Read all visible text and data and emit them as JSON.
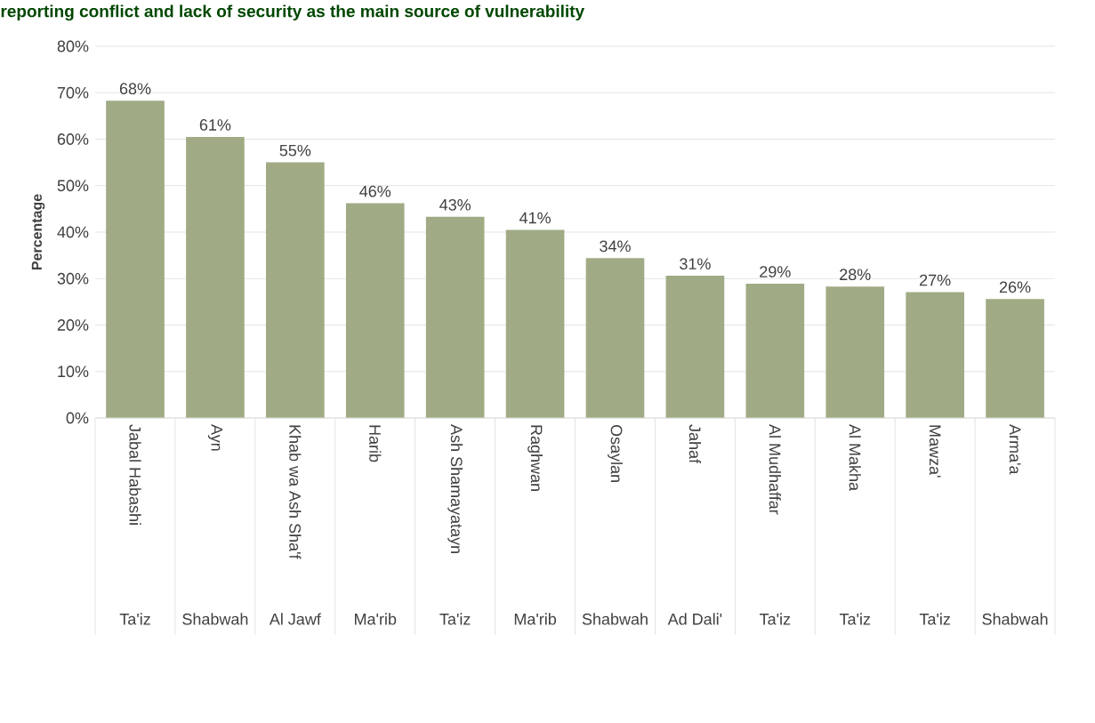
{
  "chart_data": {
    "type": "bar",
    "title": "reporting conflict and lack of security as the main source of vulnerability",
    "ylabel": "Percentage",
    "categories": [
      "Jabal Habashi",
      "Ayn",
      "Khab wa Ash Sha'f",
      "Harib",
      "Ash Shamayatayn",
      "Raghwan",
      "Osaylan",
      "Jahaf",
      "Al Mudhaffar",
      "Al Makha",
      "Mawza'",
      "Arma'a"
    ],
    "annotations": [
      "Ta'iz",
      "Shabwah",
      "Al Jawf",
      "Ma'rib",
      "Ta'iz",
      "Ma'rib",
      "Shabwah",
      "Ad Dali'",
      "Ta'iz",
      "Ta'iz",
      "Ta'iz",
      "Shabwah"
    ],
    "values": [
      68.3,
      60.5,
      55.0,
      46.2,
      43.3,
      40.5,
      34.4,
      30.6,
      28.9,
      28.3,
      27.1,
      25.6
    ],
    "value_labels": [
      "68%",
      "61%",
      "55%",
      "46%",
      "43%",
      "41%",
      "34%",
      "31%",
      "29%",
      "28%",
      "27%",
      "26%"
    ],
    "color": "#a0ab85",
    "ylim": [
      0,
      80
    ],
    "yticks": [
      {
        "value": 0,
        "label": "0%"
      },
      {
        "value": 10,
        "label": "10%"
      },
      {
        "value": 20,
        "label": "20%"
      },
      {
        "value": 30,
        "label": "30%"
      },
      {
        "value": 40,
        "label": "40%"
      },
      {
        "value": 50,
        "label": "50%"
      },
      {
        "value": 60,
        "label": "60%"
      },
      {
        "value": 70,
        "label": "70%"
      },
      {
        "value": 80,
        "label": "80%"
      }
    ],
    "grid": "y"
  }
}
